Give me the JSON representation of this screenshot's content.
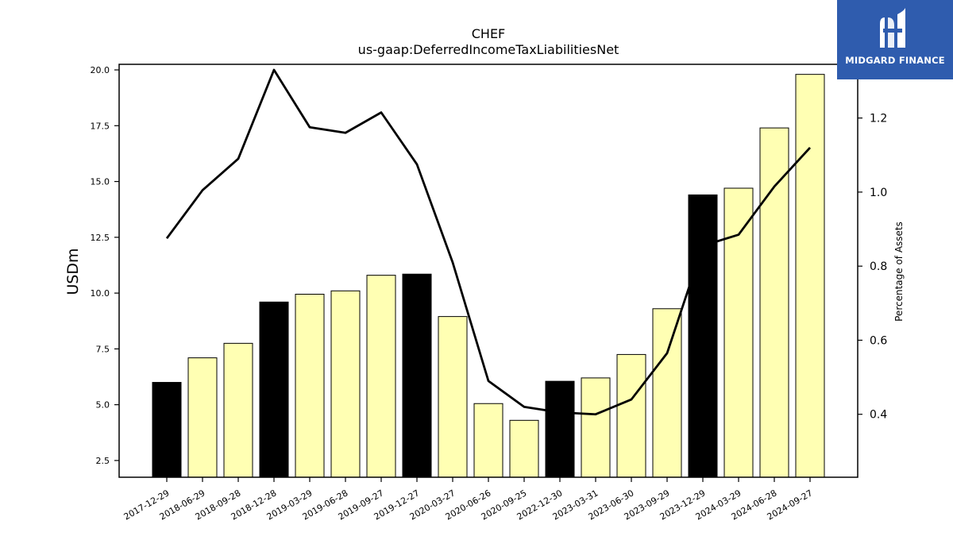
{
  "brand": {
    "name": "MIDGARD FINANCE",
    "color": "#2f5cae",
    "icon": "midgard-logo-icon"
  },
  "chart_data": {
    "type": "bar",
    "title": "CHEF",
    "subtitle": "us-gaap:DeferredIncomeTaxLiabilitiesNet",
    "ylabel": "USDm",
    "y2label": "Percentage of Assets",
    "ylim": [
      1.75,
      20.25
    ],
    "y2lim": [
      0.23,
      1.345
    ],
    "yticks": [
      2.5,
      5.0,
      7.5,
      10.0,
      12.5,
      15.0,
      17.5,
      20.0
    ],
    "y2ticks": [
      0.4,
      0.6,
      0.8,
      1.0,
      1.2
    ],
    "categories": [
      "2017-12-29",
      "2018-06-29",
      "2018-09-28",
      "2018-12-28",
      "2019-03-29",
      "2019-06-28",
      "2019-09-27",
      "2019-12-27",
      "2020-03-27",
      "2020-06-26",
      "2020-09-25",
      "2022-12-30",
      "2023-03-31",
      "2023-06-30",
      "2023-09-29",
      "2023-12-29",
      "2024-03-29",
      "2024-06-28",
      "2024-09-27"
    ],
    "series": [
      {
        "type": "bar",
        "axis": "left",
        "values": [
          6.0,
          7.1,
          7.75,
          9.6,
          9.95,
          10.1,
          10.8,
          10.85,
          8.95,
          5.05,
          4.3,
          6.05,
          6.2,
          7.25,
          9.3,
          14.4,
          14.7,
          17.4,
          19.8
        ],
        "colors": [
          "#000000",
          "#ffffb3",
          "#ffffb3",
          "#000000",
          "#ffffb3",
          "#ffffb3",
          "#ffffb3",
          "#000000",
          "#ffffb3",
          "#ffffb3",
          "#ffffb3",
          "#000000",
          "#ffffb3",
          "#ffffb3",
          "#ffffb3",
          "#000000",
          "#ffffb3",
          "#ffffb3",
          "#ffffb3"
        ]
      },
      {
        "type": "line",
        "axis": "right",
        "color": "#000000",
        "values": [
          0.875,
          1.005,
          1.09,
          1.33,
          1.175,
          1.16,
          1.215,
          1.075,
          0.81,
          0.49,
          0.42,
          0.405,
          0.4,
          0.44,
          0.565,
          0.855,
          0.885,
          1.015,
          1.12
        ]
      }
    ],
    "grid": false,
    "legend": "none"
  }
}
